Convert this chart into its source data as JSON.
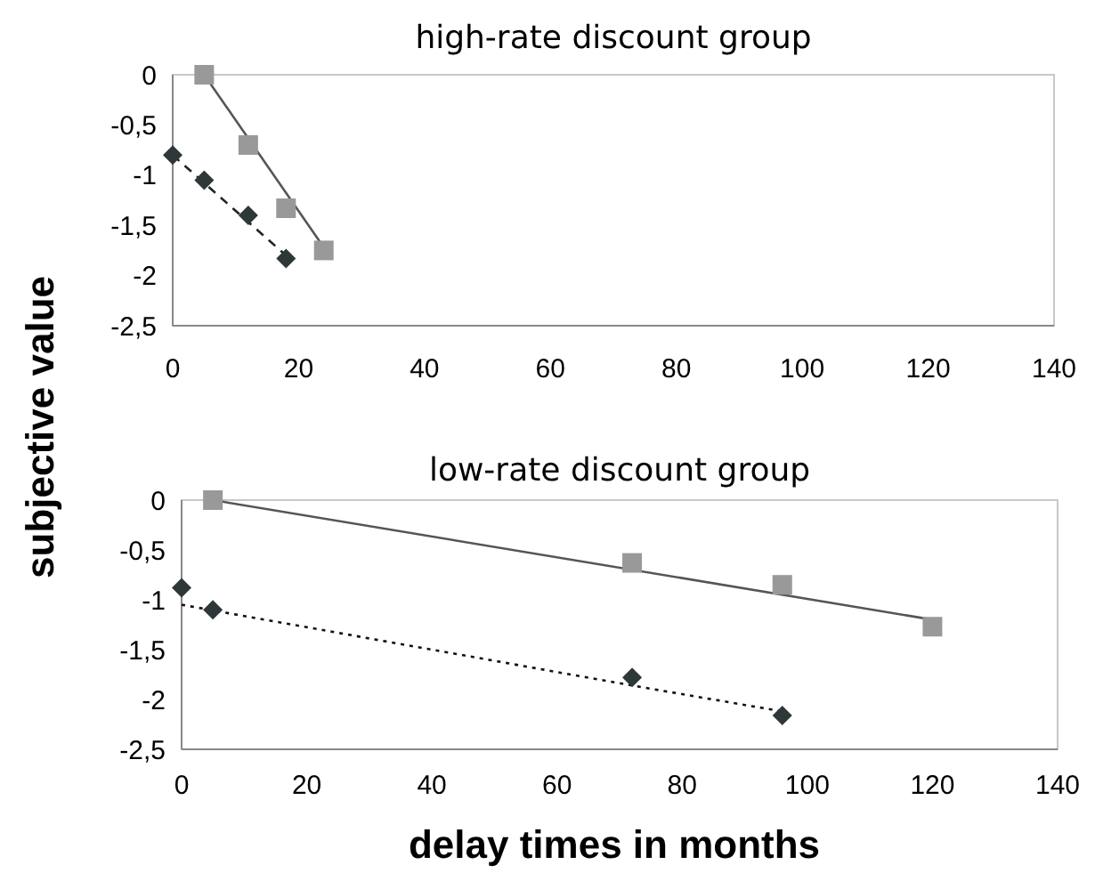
{
  "chart_data": [
    {
      "type": "scatter",
      "title": "high-rate discount group",
      "ylabel": "subjective value",
      "xlim": [
        0,
        140
      ],
      "xticks": [
        0,
        20,
        40,
        60,
        80,
        100,
        120,
        140
      ],
      "ylim": [
        -2.5,
        0
      ],
      "yticks": [
        {
          "value": -2.5,
          "label": "-2,5"
        },
        -2,
        {
          "value": -1.5,
          "label": "-1,5"
        },
        -1,
        {
          "value": -0.5,
          "label": "-0,5"
        },
        0
      ],
      "grid": false,
      "series": [
        {
          "type": "line",
          "color": "#555555",
          "line_style": "solid",
          "marker": "none",
          "x": [
            5,
            24
          ],
          "values": [
            0,
            -1.72
          ]
        },
        {
          "type": "line",
          "color": "#222222",
          "line_style": "dashed",
          "marker": "none",
          "x": [
            0,
            18
          ],
          "values": [
            -0.8,
            -1.8
          ]
        },
        {
          "type": "scatter",
          "color": "#999999",
          "marker": "square",
          "x": [
            5,
            12,
            18,
            24
          ],
          "values": [
            0,
            -0.7,
            -1.33,
            -1.75
          ]
        },
        {
          "type": "scatter",
          "color": "#2f3838",
          "marker": "diamond",
          "x": [
            0,
            5,
            12,
            18
          ],
          "values": [
            -0.8,
            -1.05,
            -1.4,
            -1.83
          ]
        }
      ]
    },
    {
      "type": "scatter",
      "title": "low-rate discount group",
      "xlabel": "delay times in months",
      "xlim": [
        0,
        140
      ],
      "xticks": [
        0,
        20,
        40,
        60,
        80,
        100,
        120,
        140
      ],
      "ylim": [
        -2.5,
        0
      ],
      "yticks": [
        {
          "value": -2.5,
          "label": "-2,5"
        },
        -2,
        {
          "value": -1.5,
          "label": "-1,5"
        },
        -1,
        {
          "value": -0.5,
          "label": "-0,5"
        },
        0
      ],
      "grid": false,
      "series": [
        {
          "type": "line",
          "color": "#555555",
          "line_style": "solid",
          "marker": "none",
          "x": [
            5,
            120
          ],
          "values": [
            0,
            -1.2
          ]
        },
        {
          "type": "line",
          "color": "#111111",
          "line_style": "dotted",
          "marker": "none",
          "x": [
            0,
            72,
            96
          ],
          "values": [
            -1.05,
            -1.86,
            -2.12
          ]
        },
        {
          "type": "scatter",
          "color": "#999999",
          "marker": "square",
          "x": [
            5,
            72,
            96,
            120
          ],
          "values": [
            0,
            -0.63,
            -0.85,
            -1.27
          ]
        },
        {
          "type": "scatter",
          "color": "#2f3838",
          "marker": "diamond",
          "x": [
            0,
            5,
            72,
            96
          ],
          "values": [
            -0.88,
            -1.1,
            -1.78,
            -2.16
          ]
        }
      ]
    }
  ]
}
